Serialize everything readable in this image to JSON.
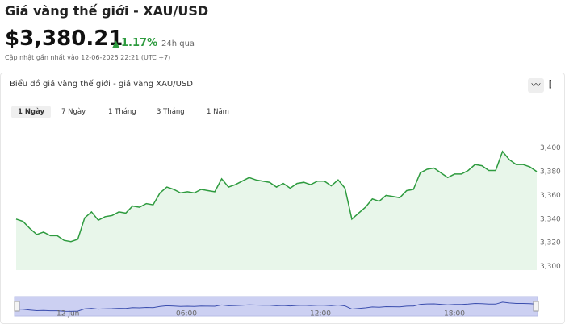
{
  "header": {
    "title": "Giá vàng thế giới - XAU/USD",
    "price": "$3,380.21",
    "change": "1.17%",
    "period": "24h qua",
    "updated": "Cập nhật gần nhất vào 12-06-2025 22:21 (UTC +7)"
  },
  "card": {
    "title": "Biểu đồ giá vàng thế giới - giá vàng XAU/USD",
    "tabs": [
      "1 Ngày",
      "7 Ngày",
      "1 Tháng",
      "3 Tháng",
      "1 Năm"
    ]
  },
  "navigator": {
    "labels": [
      "12 Jun",
      "06:00",
      "12:00",
      "18:00"
    ]
  },
  "chart_data": {
    "type": "line",
    "color": "#2e9b3f",
    "fill": "#e8f6ea",
    "values": [
      3340,
      3338,
      3332,
      3327,
      3329,
      3326,
      3326,
      3322,
      3321,
      3323,
      3341,
      3346,
      3339,
      3342,
      3343,
      3346,
      3345,
      3351,
      3350,
      3353,
      3352,
      3362,
      3367,
      3365,
      3362,
      3363,
      3362,
      3365,
      3364,
      3363,
      3374,
      3367,
      3369,
      3372,
      3375,
      3373,
      3372,
      3371,
      3367,
      3370,
      3366,
      3370,
      3371,
      3369,
      3372,
      3372,
      3368,
      3373,
      3366,
      3340,
      3345,
      3350,
      3357,
      3355,
      3360,
      3359,
      3358,
      3364,
      3365,
      3379,
      3382,
      3383,
      3379,
      3375,
      3378,
      3378,
      3381,
      3386,
      3385,
      3381,
      3381,
      3397,
      3390,
      3386,
      3386,
      3384,
      3380
    ],
    "ylim": [
      3297,
      3416
    ],
    "yticks": [
      {
        "value": 3300,
        "label": "3,300"
      },
      {
        "value": 3320,
        "label": "3,320"
      },
      {
        "value": 3340,
        "label": "3,340"
      },
      {
        "value": 3360,
        "label": "3,360"
      },
      {
        "value": 3380,
        "label": "3,380"
      },
      {
        "value": 3400,
        "label": "3,400"
      }
    ]
  }
}
